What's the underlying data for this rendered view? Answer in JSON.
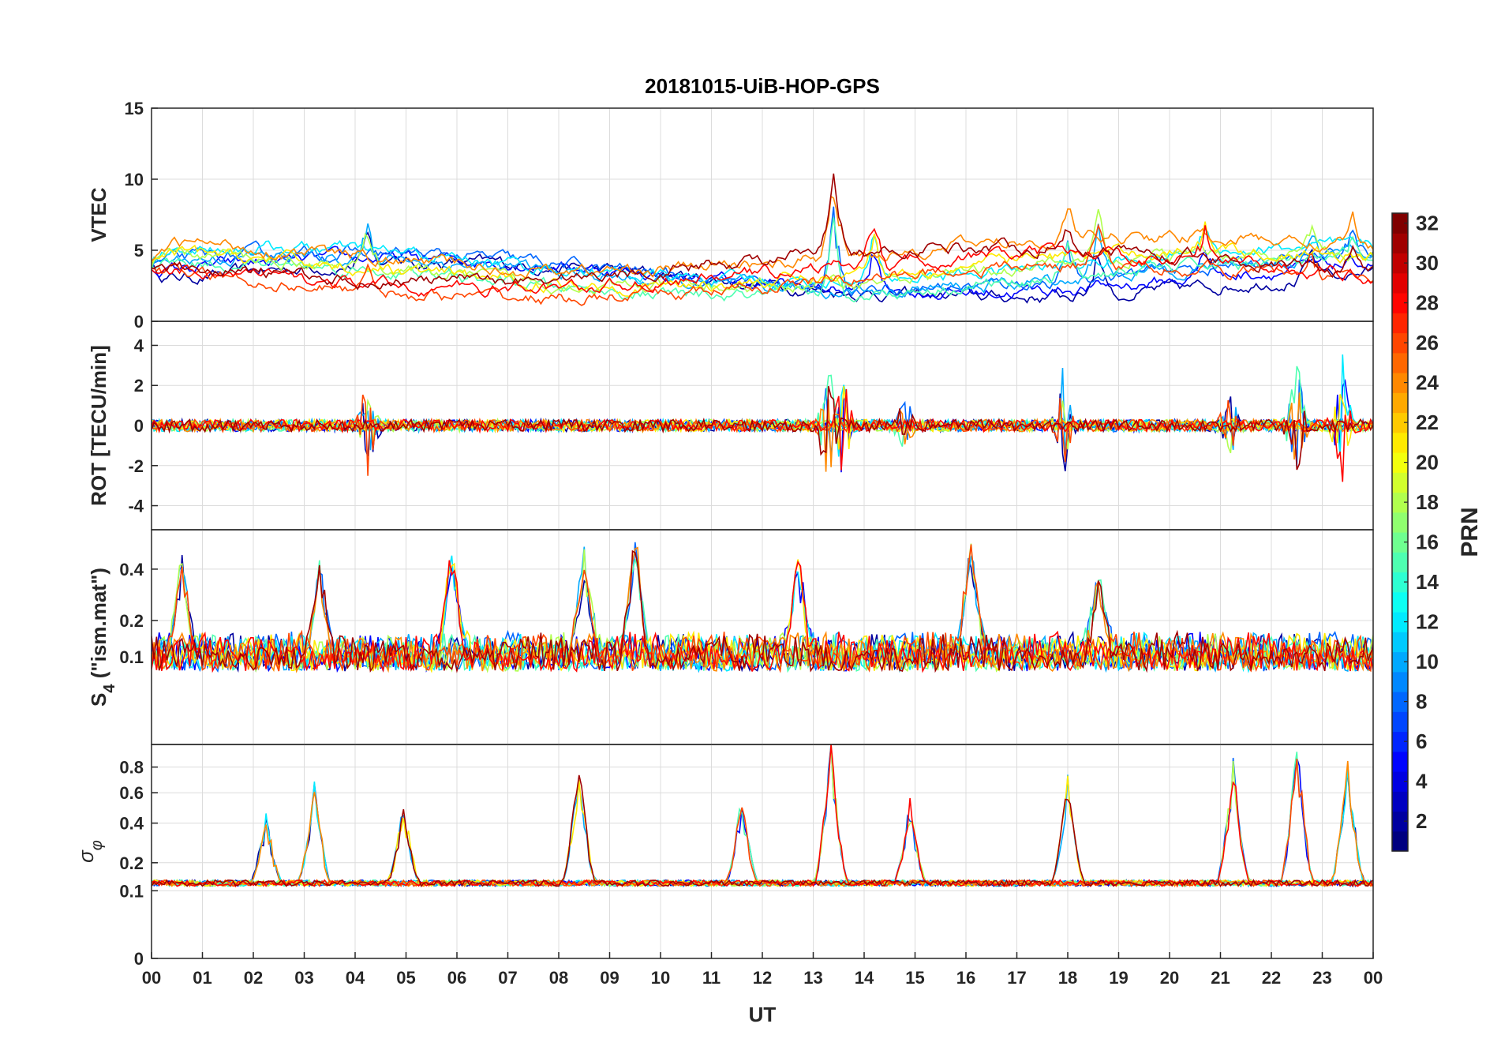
{
  "chart_data": {
    "type": "line",
    "title": "20181015-UiB-HOP-GPS",
    "xlabel": "UT",
    "x_tick_labels": [
      "00",
      "01",
      "02",
      "03",
      "04",
      "05",
      "06",
      "07",
      "08",
      "09",
      "10",
      "11",
      "12",
      "13",
      "14",
      "15",
      "16",
      "17",
      "18",
      "19",
      "20",
      "21",
      "22",
      "23",
      "00"
    ],
    "xlim": [
      0,
      24
    ],
    "panels": [
      {
        "name": "vtec",
        "ylabel": "VTEC",
        "ylim": [
          0,
          15
        ],
        "y_ticks": [
          0,
          5,
          10,
          15
        ],
        "y_tick_labels": [
          "0",
          "5",
          "10",
          "15"
        ],
        "baseline": 3.8,
        "noise": 0.6,
        "events": [
          [
            4.25,
            3
          ],
          [
            13.4,
            6
          ],
          [
            14.2,
            3.5
          ],
          [
            18.6,
            4
          ],
          [
            18.0,
            2.5
          ],
          [
            20.7,
            2.5
          ],
          [
            22.8,
            2
          ],
          [
            23.6,
            2
          ]
        ]
      },
      {
        "name": "rot",
        "ylabel": "ROT [TECU/min]",
        "ylim": [
          -5.2,
          5.2
        ],
        "y_ticks": [
          -4,
          -2,
          0,
          2,
          4
        ],
        "y_tick_labels": [
          "-4",
          "-2",
          "0",
          "2",
          "4"
        ],
        "baseline": 0,
        "noise": 0.3,
        "events": [
          [
            4.25,
            2.8
          ],
          [
            13.3,
            3.5
          ],
          [
            13.6,
            3
          ],
          [
            17.9,
            2.8
          ],
          [
            22.5,
            3.5
          ],
          [
            23.4,
            3.5
          ],
          [
            21.2,
            2
          ],
          [
            14.8,
            1.5
          ]
        ]
      },
      {
        "name": "s4",
        "ylabel": "S4 (\"ism.mat\")",
        "ylabel_main": "S",
        "ylabel_sub": "4",
        "ylabel_rest": " (\"ism.mat\")",
        "ylim": [
          0,
          0.6
        ],
        "y_scale": "sqrt",
        "y_ticks": [
          0.1,
          0.2,
          0.4
        ],
        "y_tick_labels": [
          "0.1",
          "0.2",
          "0.4"
        ],
        "baseline": 0.1,
        "noise": 0.08,
        "events": [
          [
            0.6,
            0.4
          ],
          [
            3.3,
            0.35
          ],
          [
            5.9,
            0.45
          ],
          [
            8.5,
            0.4
          ],
          [
            9.5,
            0.5
          ],
          [
            12.7,
            0.4
          ],
          [
            16.1,
            0.5
          ],
          [
            18.6,
            0.3
          ]
        ]
      },
      {
        "name": "sigma_phi",
        "ylabel": "σ φ",
        "ylabel_main": "σ",
        "ylabel_sub": "φ",
        "ylim": [
          0,
          1
        ],
        "y_scale": "sqrt",
        "y_ticks": [
          0,
          0.1,
          0.2,
          0.4,
          0.6,
          0.8
        ],
        "y_tick_labels": [
          "0",
          "0.1",
          "0.2",
          "0.4",
          "0.6",
          "0.8"
        ],
        "baseline": 0.12,
        "noise": 0.02,
        "events": [
          [
            3.2,
            0.6
          ],
          [
            8.4,
            0.78
          ],
          [
            13.35,
            0.95
          ],
          [
            22.5,
            0.95
          ],
          [
            23.5,
            0.8
          ],
          [
            18.0,
            0.62
          ],
          [
            14.9,
            0.45
          ],
          [
            11.6,
            0.5
          ],
          [
            2.25,
            0.35
          ],
          [
            4.95,
            0.45
          ],
          [
            21.25,
            0.75
          ]
        ]
      }
    ],
    "colorbar": {
      "label": "PRN",
      "range": [
        1,
        32
      ],
      "ticks": [
        2,
        4,
        6,
        8,
        10,
        12,
        14,
        16,
        18,
        20,
        22,
        24,
        26,
        28,
        30,
        32
      ],
      "tick_labels": [
        "2",
        "4",
        "6",
        "8",
        "10",
        "12",
        "14",
        "16",
        "18",
        "20",
        "22",
        "24",
        "26",
        "28",
        "30",
        "32"
      ],
      "colormap": "jet"
    },
    "prn_series": [
      2,
      5,
      8,
      10,
      12,
      15,
      18,
      21,
      24,
      26,
      28,
      31
    ]
  }
}
